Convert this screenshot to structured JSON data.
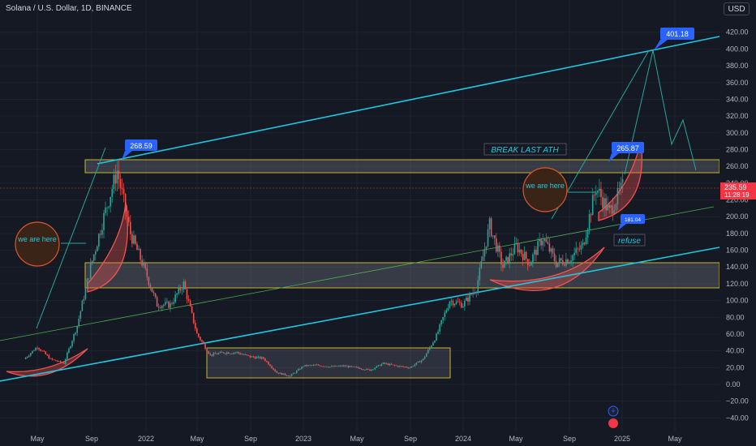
{
  "header": {
    "symbol": "Solana / U.S. Dollar, 1D, BINANCE",
    "currency_button": "USD"
  },
  "price_axis": {
    "ticks": [
      "420.00",
      "400.00",
      "380.00",
      "360.00",
      "340.00",
      "320.00",
      "300.00",
      "280.00",
      "260.00",
      "240.00",
      "220.00",
      "200.00",
      "180.00",
      "160.00",
      "140.00",
      "120.00",
      "100.00",
      "80.00",
      "60.00",
      "40.00",
      "20.00",
      "0.00",
      "−20.00",
      "−40.00"
    ],
    "tick_values": [
      420,
      400,
      380,
      360,
      340,
      320,
      300,
      280,
      260,
      240,
      220,
      200,
      180,
      160,
      140,
      120,
      100,
      80,
      60,
      40,
      20,
      0,
      -20,
      -40
    ],
    "current_price": "235.59",
    "countdown": "11:28:19",
    "current_price_value": 235.59
  },
  "time_axis": {
    "labels": [
      "May",
      "Sep",
      "2022",
      "May",
      "Sep",
      "2023",
      "May",
      "Sep",
      "2024",
      "May",
      "Sep",
      "2025",
      "May"
    ]
  },
  "annotations": {
    "ath_2021": "268.59",
    "ath_2024": "265.87",
    "target": "401.18",
    "small_tag": "181.04",
    "we_are_here_1": "we are here",
    "we_are_here_2": "we are here",
    "break_last_ath": "BREAK LAST ATH",
    "refuse": "refuse"
  },
  "colors": {
    "background": "#151924",
    "channel_line": "#22c5dc",
    "zone_border": "#c9b530",
    "candle_up": "#26a69a",
    "candle_down": "#ef5350",
    "price_tag": "#f23645",
    "callout": "#2962ff",
    "circle_fill": "#3a2417",
    "circle_border": "#d9572a",
    "accent_text": "#26c6da"
  },
  "chart_data": {
    "type": "candlestick",
    "ylim": [
      -40,
      420
    ],
    "price_path": [
      [
        "2021-04",
        30
      ],
      [
        "2021-05",
        45
      ],
      [
        "2021-06",
        30
      ],
      [
        "2021-07",
        25
      ],
      [
        "2021-08",
        70
      ],
      [
        "2021-09",
        140
      ],
      [
        "2021-10",
        200
      ],
      [
        "2021-11",
        255
      ],
      [
        "2021-12",
        180
      ],
      [
        "2022-01",
        140
      ],
      [
        "2022-02",
        95
      ],
      [
        "2022-03",
        95
      ],
      [
        "2022-04",
        120
      ],
      [
        "2022-05",
        60
      ],
      [
        "2022-06",
        35
      ],
      [
        "2022-07",
        38
      ],
      [
        "2022-08",
        38
      ],
      [
        "2022-09",
        33
      ],
      [
        "2022-10",
        31
      ],
      [
        "2022-11",
        14
      ],
      [
        "2022-12",
        10
      ],
      [
        "2023-01",
        22
      ],
      [
        "2023-02",
        23
      ],
      [
        "2023-03",
        21
      ],
      [
        "2023-04",
        22
      ],
      [
        "2023-05",
        20
      ],
      [
        "2023-06",
        17
      ],
      [
        "2023-07",
        25
      ],
      [
        "2023-08",
        22
      ],
      [
        "2023-09",
        20
      ],
      [
        "2023-10",
        30
      ],
      [
        "2023-11",
        58
      ],
      [
        "2023-12",
        100
      ],
      [
        "2024-01",
        95
      ],
      [
        "2024-02",
        115
      ],
      [
        "2024-03",
        190
      ],
      [
        "2024-04",
        140
      ],
      [
        "2024-05",
        165
      ],
      [
        "2024-06",
        145
      ],
      [
        "2024-07",
        175
      ],
      [
        "2024-08",
        145
      ],
      [
        "2024-09",
        150
      ],
      [
        "2024-10",
        165
      ],
      [
        "2024-11",
        235
      ],
      [
        "2024-12",
        205
      ],
      [
        "2025-01",
        235.59
      ]
    ],
    "zones": [
      {
        "name": "ATH zone",
        "from": 254,
        "to": 270
      },
      {
        "name": "mid zone",
        "from": 116,
        "to": 146
      },
      {
        "name": "bear base",
        "from": 6,
        "to": 44
      }
    ]
  }
}
